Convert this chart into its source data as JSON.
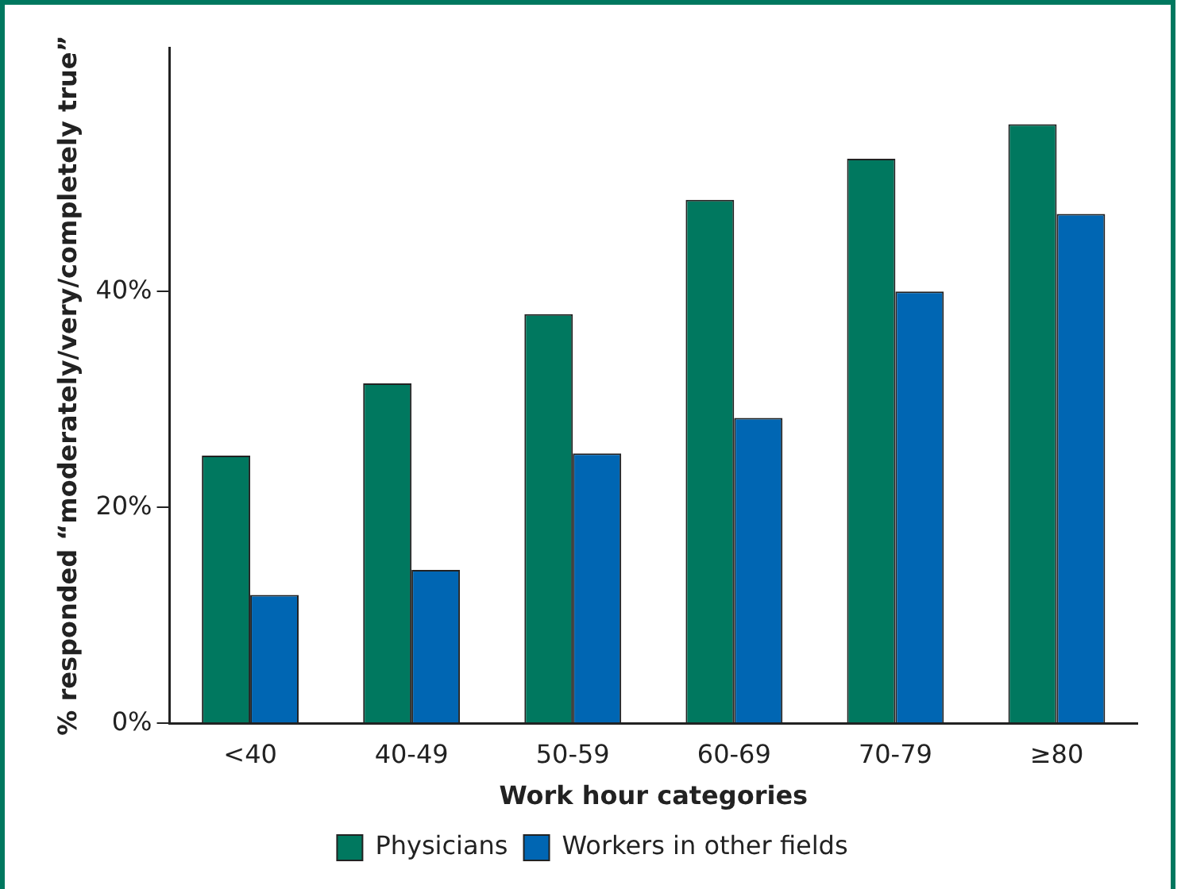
{
  "chart_data": {
    "type": "bar",
    "xlabel": "Work hour categories",
    "ylabel": "% responded “moderately/very/completely true”",
    "categories": [
      "<40",
      "40-49",
      "50-59",
      "60-69",
      "70-79",
      "≥80"
    ],
    "series": [
      {
        "name": "Physicians",
        "color": "#00785f",
        "values": [
          24.8,
          31.5,
          37.9,
          48.5,
          52.3,
          55.5
        ]
      },
      {
        "name": "Workers in other fields",
        "color": "#0066b3",
        "values": [
          11.9,
          14.2,
          25.0,
          28.3,
          40.0,
          47.2
        ]
      }
    ],
    "ylim": [
      0,
      62.6
    ],
    "yticks": [
      {
        "value": 0,
        "label": "0%"
      },
      {
        "value": 20,
        "label": "20%"
      },
      {
        "value": 40,
        "label": "40%"
      }
    ],
    "grid": false,
    "legend": "bottom"
  }
}
